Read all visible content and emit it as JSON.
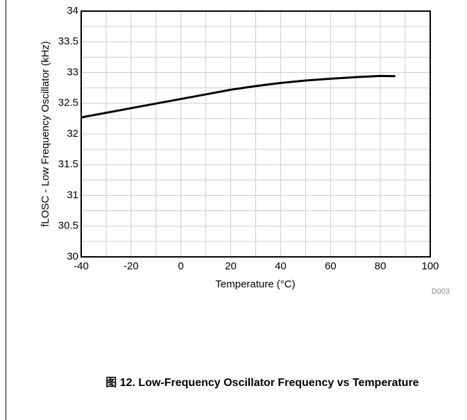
{
  "chart_data": {
    "type": "line",
    "x": [
      -40,
      -30,
      -20,
      -10,
      0,
      10,
      20,
      30,
      40,
      50,
      60,
      70,
      80,
      86
    ],
    "series": [
      {
        "color": "#000000",
        "values": [
          32.27,
          32.345,
          32.42,
          32.495,
          32.57,
          32.645,
          32.72,
          32.78,
          32.83,
          32.87,
          32.9,
          32.925,
          32.945,
          32.94
        ]
      }
    ],
    "xlim": [
      -40,
      100
    ],
    "xticks": [
      -40,
      -20,
      0,
      20,
      40,
      60,
      80,
      100
    ],
    "ylim": [
      30,
      34
    ],
    "yticks": [
      30,
      30.5,
      31,
      31.5,
      32,
      32.5,
      33,
      33.5,
      34
    ],
    "xgrid": [
      -30,
      -10,
      10,
      30,
      50,
      70,
      90
    ],
    "ygrid": [
      30.25,
      30.75,
      31.25,
      31.75,
      32.25,
      32.75,
      33.25,
      33.75
    ],
    "grid": true,
    "xlabel": "Temperature (°C)",
    "ylabel": "fLOSC - Low Frequency Oscillator (kHz)",
    "annotation": "D003",
    "caption": "图 12. Low-Frequency Oscillator Frequency vs Temperature"
  }
}
